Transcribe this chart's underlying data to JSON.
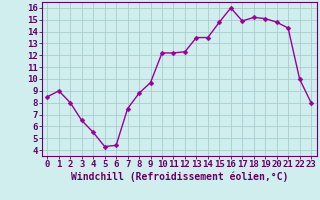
{
  "x": [
    0,
    1,
    2,
    3,
    4,
    5,
    6,
    7,
    8,
    9,
    10,
    11,
    12,
    13,
    14,
    15,
    16,
    17,
    18,
    19,
    20,
    21,
    22,
    23
  ],
  "y": [
    8.5,
    9.0,
    8.0,
    6.5,
    5.5,
    4.3,
    4.4,
    7.5,
    8.8,
    9.7,
    12.2,
    12.2,
    12.3,
    13.5,
    13.5,
    14.8,
    16.0,
    14.9,
    15.2,
    15.1,
    14.8,
    14.3,
    10.0,
    8.0
  ],
  "line_color": "#990099",
  "marker": "D",
  "marker_size": 2.5,
  "bg_color": "#d0eeee",
  "grid_color": "#aacccc",
  "xlabel": "Windchill (Refroidissement éolien,°C)",
  "xlabel_fontsize": 7,
  "tick_fontsize": 6.5,
  "ylim": [
    3.5,
    16.5
  ],
  "xlim": [
    -0.5,
    23.5
  ],
  "yticks": [
    4,
    5,
    6,
    7,
    8,
    9,
    10,
    11,
    12,
    13,
    14,
    15,
    16
  ],
  "xticks": [
    0,
    1,
    2,
    3,
    4,
    5,
    6,
    7,
    8,
    9,
    10,
    11,
    12,
    13,
    14,
    15,
    16,
    17,
    18,
    19,
    20,
    21,
    22,
    23
  ],
  "line_width": 1.0,
  "spine_color": "#660066",
  "tick_color": "#660066",
  "label_color": "#660066"
}
